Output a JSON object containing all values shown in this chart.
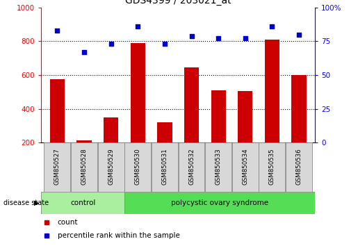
{
  "title": "GDS4399 / 203021_at",
  "samples": [
    "GSM850527",
    "GSM850528",
    "GSM850529",
    "GSM850530",
    "GSM850531",
    "GSM850532",
    "GSM850533",
    "GSM850534",
    "GSM850535",
    "GSM850536"
  ],
  "counts": [
    575,
    215,
    350,
    790,
    320,
    645,
    510,
    505,
    810,
    600
  ],
  "percentiles": [
    83,
    67,
    73,
    86,
    73,
    79,
    77,
    77,
    86,
    80
  ],
  "ylim_left": [
    200,
    1000
  ],
  "ylim_right": [
    0,
    100
  ],
  "yticks_left": [
    200,
    400,
    600,
    800,
    1000
  ],
  "yticks_right": [
    0,
    25,
    50,
    75,
    100
  ],
  "bar_color": "#cc0000",
  "dot_color": "#0000cc",
  "control_color": "#aaeea0",
  "pcos_color": "#55dd55",
  "label_bg_color": "#d8d8d8",
  "control_samples": 3,
  "disease_label": "disease state",
  "control_text": "control",
  "pcos_text": "polycystic ovary syndrome",
  "legend_count": "count",
  "legend_percentile": "percentile rank within the sample",
  "title_fontsize": 10,
  "tick_fontsize": 7.5,
  "legend_fontsize": 7.5,
  "sample_fontsize": 6.2
}
